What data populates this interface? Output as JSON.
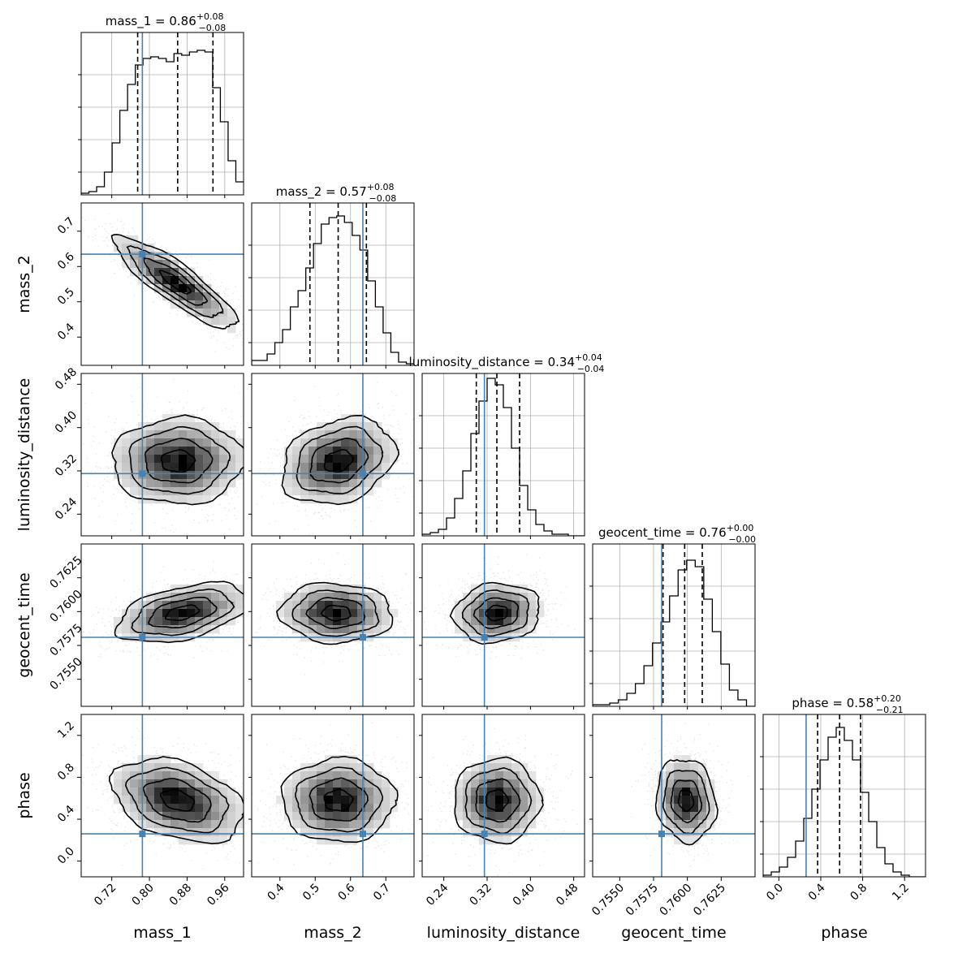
{
  "chart_data": {
    "type": "corner",
    "parameters": [
      {
        "name": "mass_1",
        "median": "0.86",
        "plus": "+0.08",
        "minus": "−0.08",
        "range": [
          0.655,
          1.0
        ],
        "ticks": [
          0.72,
          0.8,
          0.88,
          0.96
        ],
        "tick_labels": [
          "0.72",
          "0.80",
          "0.88",
          "0.96"
        ],
        "truth": 0.785,
        "q16": 0.775,
        "q50": 0.86,
        "q84": 0.935
      },
      {
        "name": "mass_2",
        "median": "0.57",
        "plus": "+0.08",
        "minus": "−0.08",
        "range": [
          0.32,
          0.78
        ],
        "ticks": [
          0.4,
          0.5,
          0.6,
          0.7
        ],
        "tick_labels": [
          "0.4",
          "0.5",
          "0.6",
          "0.7"
        ],
        "truth": 0.635,
        "q16": 0.485,
        "q50": 0.565,
        "q84": 0.645
      },
      {
        "name": "luminosity_distance",
        "median": "0.34",
        "plus": "+0.04",
        "minus": "−0.04",
        "range": [
          0.2,
          0.5
        ],
        "ticks": [
          0.24,
          0.32,
          0.4,
          0.48
        ],
        "tick_labels": [
          "0.24",
          "0.32",
          "0.40",
          "0.48"
        ],
        "truth": 0.315,
        "q16": 0.3,
        "q50": 0.338,
        "q84": 0.38
      },
      {
        "name": "geocent_time",
        "median": "0.76",
        "plus": "+0.00",
        "minus": "−0.00",
        "range": [
          0.753,
          0.765
        ],
        "ticks": [
          0.755,
          0.7575,
          0.76,
          0.7625
        ],
        "tick_labels": [
          "0.7550",
          "0.7575",
          "0.7600",
          "0.7625"
        ],
        "truth": 0.7581,
        "q16": 0.7582,
        "q50": 0.7598,
        "q84": 0.7611
      },
      {
        "name": "phase",
        "median": "0.58",
        "plus": "+0.20",
        "minus": "−0.21",
        "range": [
          -0.15,
          1.4
        ],
        "ticks": [
          0.0,
          0.4,
          0.8,
          1.2
        ],
        "tick_labels": [
          "0.0",
          "0.4",
          "0.8",
          "1.2"
        ],
        "truth": 0.26,
        "q16": 0.37,
        "q50": 0.58,
        "q84": 0.78
      }
    ],
    "histograms": [
      [
        0.01,
        0.02,
        0.05,
        0.14,
        0.32,
        0.52,
        0.68,
        0.8,
        0.84,
        0.85,
        0.84,
        0.82,
        0.87,
        0.86,
        0.88,
        0.89,
        0.88,
        0.66,
        0.45,
        0.21,
        0.08
      ],
      [
        0.03,
        0.03,
        0.07,
        0.14,
        0.22,
        0.36,
        0.46,
        0.6,
        0.75,
        0.87,
        0.91,
        0.92,
        0.88,
        0.8,
        0.71,
        0.52,
        0.36,
        0.2,
        0.08,
        0.02,
        0.01
      ],
      [
        0.01,
        0.02,
        0.04,
        0.11,
        0.23,
        0.4,
        0.63,
        0.83,
        0.97,
        0.93,
        0.79,
        0.54,
        0.31,
        0.16,
        0.07,
        0.03,
        0.01,
        0.01,
        0.0,
        0.0
      ],
      [
        0.01,
        0.01,
        0.02,
        0.04,
        0.08,
        0.14,
        0.25,
        0.39,
        0.52,
        0.68,
        0.84,
        0.9,
        0.86,
        0.66,
        0.46,
        0.26,
        0.1,
        0.04,
        0.0
      ],
      [
        0.01,
        0.03,
        0.06,
        0.12,
        0.22,
        0.36,
        0.54,
        0.72,
        0.86,
        0.92,
        0.84,
        0.72,
        0.52,
        0.34,
        0.18,
        0.08,
        0.03,
        0.01,
        0.0,
        0.0
      ]
    ],
    "pairs": [
      {
        "x": 0,
        "y": 1,
        "cx": 0.855,
        "cy": 0.555,
        "sx": 0.065,
        "sy": 0.065,
        "rho": -0.87
      },
      {
        "x": 0,
        "y": 2,
        "cx": 0.86,
        "cy": 0.338,
        "sx": 0.07,
        "sy": 0.04,
        "rho": 0.02
      },
      {
        "x": 1,
        "y": 2,
        "cx": 0.565,
        "cy": 0.338,
        "sx": 0.08,
        "sy": 0.04,
        "rho": 0.25
      },
      {
        "x": 0,
        "y": 3,
        "cx": 0.87,
        "cy": 0.7599,
        "sx": 0.07,
        "sy": 0.0011,
        "rho": 0.45
      },
      {
        "x": 1,
        "y": 3,
        "cx": 0.56,
        "cy": 0.7599,
        "sx": 0.08,
        "sy": 0.0011,
        "rho": -0.05
      },
      {
        "x": 2,
        "y": 3,
        "cx": 0.338,
        "cy": 0.7599,
        "sx": 0.04,
        "sy": 0.0011,
        "rho": 0.1
      },
      {
        "x": 0,
        "y": 4,
        "cx": 0.86,
        "cy": 0.58,
        "sx": 0.07,
        "sy": 0.2,
        "rho": -0.35
      },
      {
        "x": 1,
        "y": 4,
        "cx": 0.565,
        "cy": 0.58,
        "sx": 0.08,
        "sy": 0.2,
        "rho": 0.0
      },
      {
        "x": 2,
        "y": 4,
        "cx": 0.338,
        "cy": 0.58,
        "sx": 0.04,
        "sy": 0.2,
        "rho": 0.0
      },
      {
        "x": 3,
        "y": 4,
        "cx": 0.7599,
        "cy": 0.58,
        "sx": 0.0011,
        "sy": 0.2,
        "rho": -0.1
      }
    ],
    "truth_color": "#4682b4",
    "quantile_line_style": "dashed",
    "grid": true
  }
}
